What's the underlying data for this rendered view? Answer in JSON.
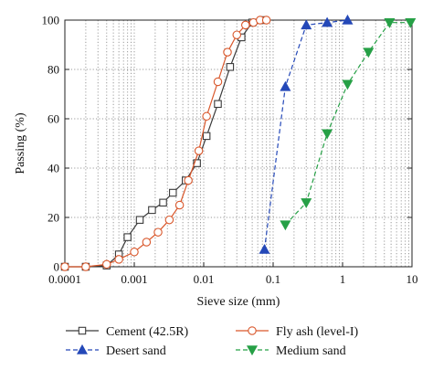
{
  "chart_data": {
    "type": "line",
    "title": "",
    "xlabel": "Sieve size (mm)",
    "ylabel": "Passing (%)",
    "x_scale": "log",
    "xlim": [
      0.0001,
      10
    ],
    "ylim": [
      0,
      100
    ],
    "x_ticks": [
      0.0001,
      0.001,
      0.01,
      0.1,
      1,
      10
    ],
    "x_tick_labels": [
      "0.0001",
      "0.001",
      "0.01",
      "0.1",
      "1",
      "10"
    ],
    "y_ticks": [
      0,
      20,
      40,
      60,
      80,
      100
    ],
    "y_tick_labels": [
      "0",
      "20",
      "40",
      "60",
      "80",
      "100"
    ],
    "grid": "dotted",
    "legend_position": "bottom",
    "series": [
      {
        "name": "Cement (42.5R)",
        "color": "#3a3a3a",
        "line": "solid",
        "marker": "square-open",
        "x": [
          0.0001,
          0.0002,
          0.0004,
          0.0006,
          0.0008,
          0.0012,
          0.0018,
          0.0026,
          0.0036,
          0.0055,
          0.008,
          0.011,
          0.016,
          0.024,
          0.035,
          0.05,
          0.07
        ],
        "y": [
          0,
          0,
          0.5,
          5,
          12,
          19,
          23,
          26,
          30,
          35,
          42,
          53,
          66,
          81,
          93,
          99,
          100
        ]
      },
      {
        "name": "Fly ash (level-I)",
        "color": "#d9572b",
        "line": "solid",
        "marker": "circle-open",
        "x": [
          0.0001,
          0.0002,
          0.0004,
          0.0006,
          0.001,
          0.0015,
          0.0022,
          0.0032,
          0.0045,
          0.006,
          0.0085,
          0.011,
          0.016,
          0.022,
          0.03,
          0.04,
          0.052,
          0.065,
          0.08
        ],
        "y": [
          0,
          0,
          1,
          3,
          6,
          10,
          14,
          19,
          25,
          35,
          47,
          61,
          75,
          87,
          94,
          98,
          99,
          100,
          100
        ]
      },
      {
        "name": "Desert sand",
        "color": "#2448b8",
        "line": "dashed",
        "marker": "triangle-up-filled",
        "x": [
          0.075,
          0.15,
          0.3,
          0.6,
          1.18
        ],
        "y": [
          7,
          73,
          98,
          99,
          100
        ]
      },
      {
        "name": "Medium sand",
        "color": "#26a046",
        "line": "dashed",
        "marker": "triangle-down-filled",
        "x": [
          0.15,
          0.3,
          0.6,
          1.18,
          2.36,
          4.75,
          9.5
        ],
        "y": [
          17,
          26,
          54,
          74,
          87,
          99,
          99
        ]
      }
    ]
  }
}
